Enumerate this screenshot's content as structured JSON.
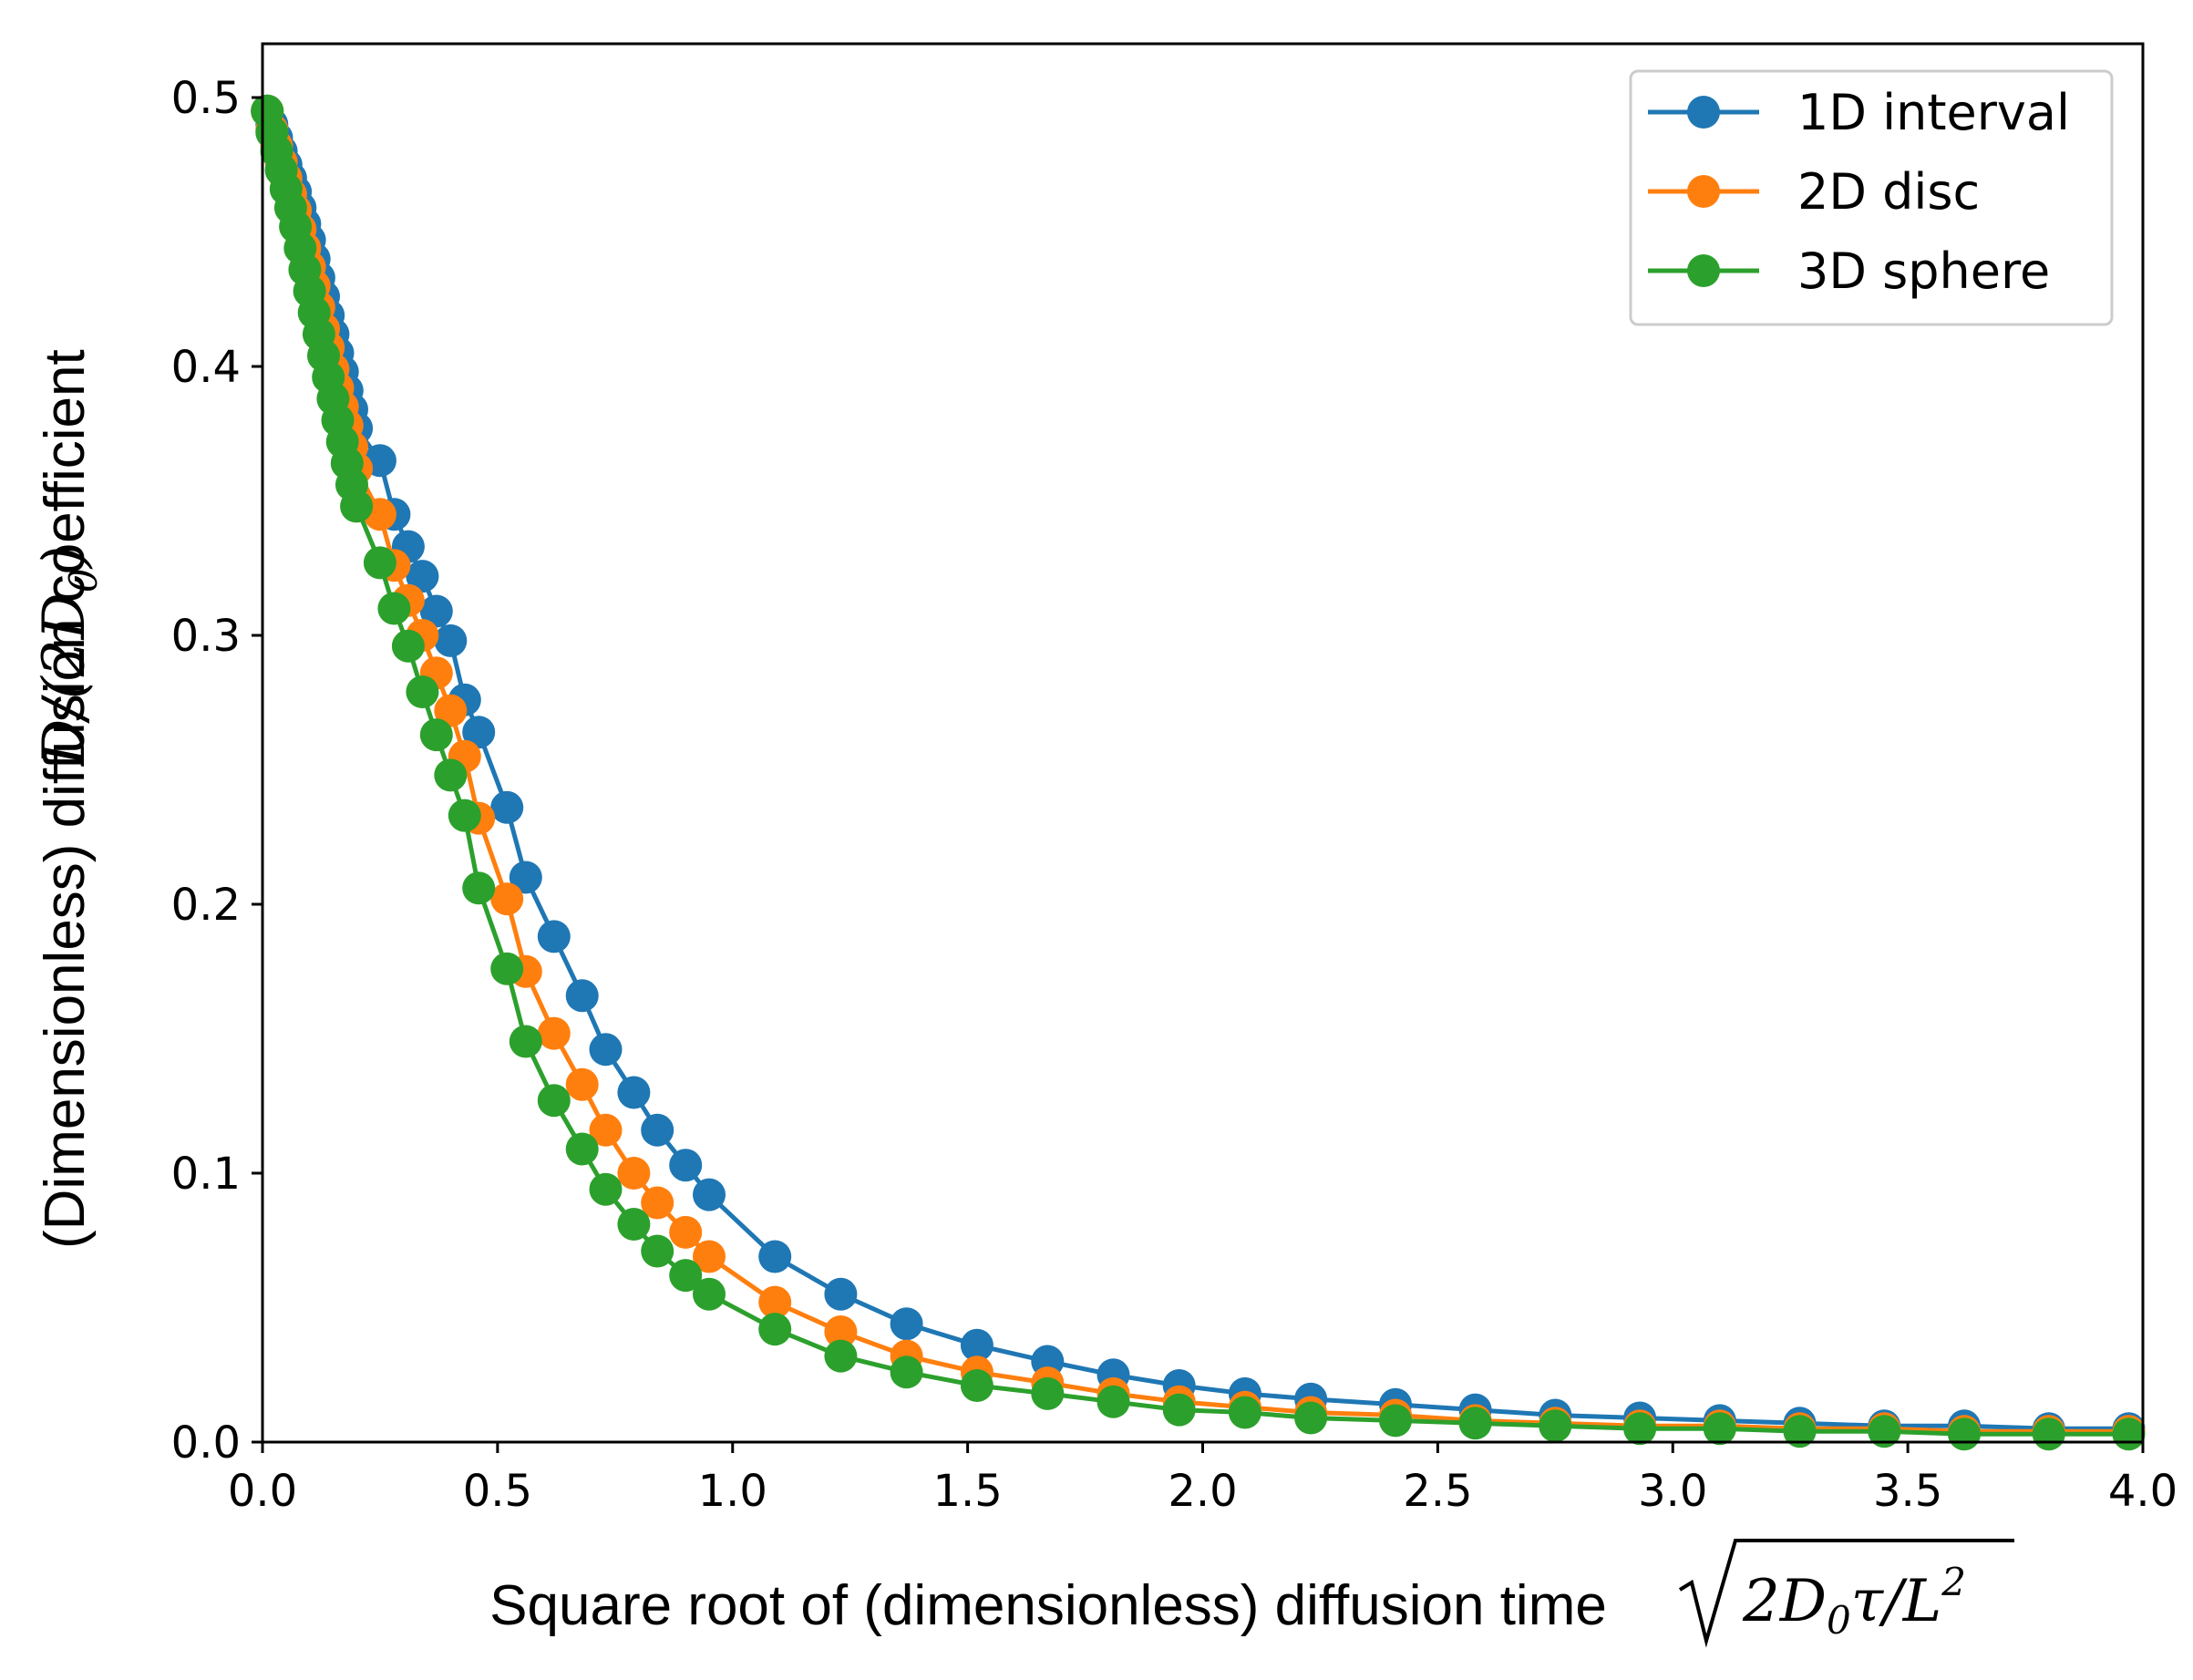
{
  "chart_data": {
    "type": "line",
    "title": "",
    "xlabel": "Square root of (dimensionless) diffusion time",
    "xlabel_math": "2D0τ/L2",
    "ylabel": "(Dimensionless) diffusion coefficient",
    "ylabel_math": "D/(2D0)",
    "xlim": [
      0.0,
      4.0
    ],
    "ylim": [
      0.0,
      0.52
    ],
    "xticks": [
      0.0,
      0.5,
      1.0,
      1.5,
      2.0,
      2.5,
      3.0,
      3.5,
      4.0
    ],
    "xtick_labels": [
      "0.0",
      "0.5",
      "1.0",
      "1.5",
      "2.0",
      "2.5",
      "3.0",
      "3.5",
      "4.0"
    ],
    "yticks": [
      0.0,
      0.1,
      0.2,
      0.3,
      0.4,
      0.5
    ],
    "ytick_labels": [
      "0.0",
      "0.1",
      "0.2",
      "0.3",
      "0.4",
      "0.5"
    ],
    "grid": false,
    "legend_position": "top-right",
    "x": [
      0.01,
      0.02,
      0.03,
      0.04,
      0.05,
      0.06,
      0.07,
      0.08,
      0.09,
      0.1,
      0.11,
      0.12,
      0.13,
      0.14,
      0.15,
      0.16,
      0.17,
      0.18,
      0.19,
      0.2,
      0.25,
      0.28,
      0.31,
      0.34,
      0.37,
      0.4,
      0.43,
      0.46,
      0.52,
      0.56,
      0.62,
      0.68,
      0.73,
      0.79,
      0.84,
      0.9,
      0.95,
      1.09,
      1.23,
      1.37,
      1.52,
      1.67,
      1.81,
      1.95,
      2.09,
      2.23,
      2.41,
      2.58,
      2.75,
      2.93,
      3.1,
      3.27,
      3.45,
      3.62,
      3.8,
      3.97
    ],
    "series": [
      {
        "name": "1D interval",
        "color": "#1f77b4",
        "values": [
          0.495,
          0.49,
          0.485,
          0.48,
          0.475,
          0.47,
          0.465,
          0.459,
          0.453,
          0.447,
          0.44,
          0.433,
          0.426,
          0.419,
          0.412,
          0.405,
          0.398,
          0.391,
          0.384,
          0.377,
          0.365,
          0.345,
          0.333,
          0.322,
          0.309,
          0.298,
          0.276,
          0.264,
          0.236,
          0.21,
          0.188,
          0.166,
          0.146,
          0.13,
          0.116,
          0.103,
          0.092,
          0.069,
          0.055,
          0.044,
          0.036,
          0.03,
          0.025,
          0.021,
          0.018,
          0.016,
          0.014,
          0.012,
          0.01,
          0.009,
          0.008,
          0.007,
          0.006,
          0.006,
          0.005,
          0.005
        ]
      },
      {
        "name": "2D disc",
        "color": "#ff7f0e",
        "values": [
          0.495,
          0.488,
          0.482,
          0.476,
          0.47,
          0.464,
          0.458,
          0.451,
          0.444,
          0.437,
          0.43,
          0.422,
          0.414,
          0.407,
          0.399,
          0.392,
          0.385,
          0.378,
          0.37,
          0.362,
          0.345,
          0.326,
          0.313,
          0.3,
          0.286,
          0.272,
          0.255,
          0.232,
          0.202,
          0.175,
          0.152,
          0.133,
          0.116,
          0.1,
          0.089,
          0.078,
          0.069,
          0.052,
          0.041,
          0.032,
          0.026,
          0.022,
          0.018,
          0.015,
          0.013,
          0.011,
          0.01,
          0.008,
          0.007,
          0.006,
          0.006,
          0.005,
          0.005,
          0.004,
          0.004,
          0.004
        ]
      },
      {
        "name": "3D sphere",
        "color": "#2ca02c",
        "values": [
          0.495,
          0.487,
          0.48,
          0.473,
          0.466,
          0.459,
          0.452,
          0.444,
          0.436,
          0.428,
          0.42,
          0.412,
          0.404,
          0.396,
          0.388,
          0.38,
          0.372,
          0.364,
          0.356,
          0.348,
          0.327,
          0.31,
          0.296,
          0.279,
          0.263,
          0.248,
          0.233,
          0.206,
          0.176,
          0.149,
          0.127,
          0.109,
          0.094,
          0.081,
          0.071,
          0.062,
          0.055,
          0.042,
          0.032,
          0.026,
          0.021,
          0.018,
          0.015,
          0.012,
          0.011,
          0.009,
          0.008,
          0.007,
          0.006,
          0.005,
          0.005,
          0.004,
          0.004,
          0.003,
          0.003,
          0.003
        ]
      }
    ]
  }
}
